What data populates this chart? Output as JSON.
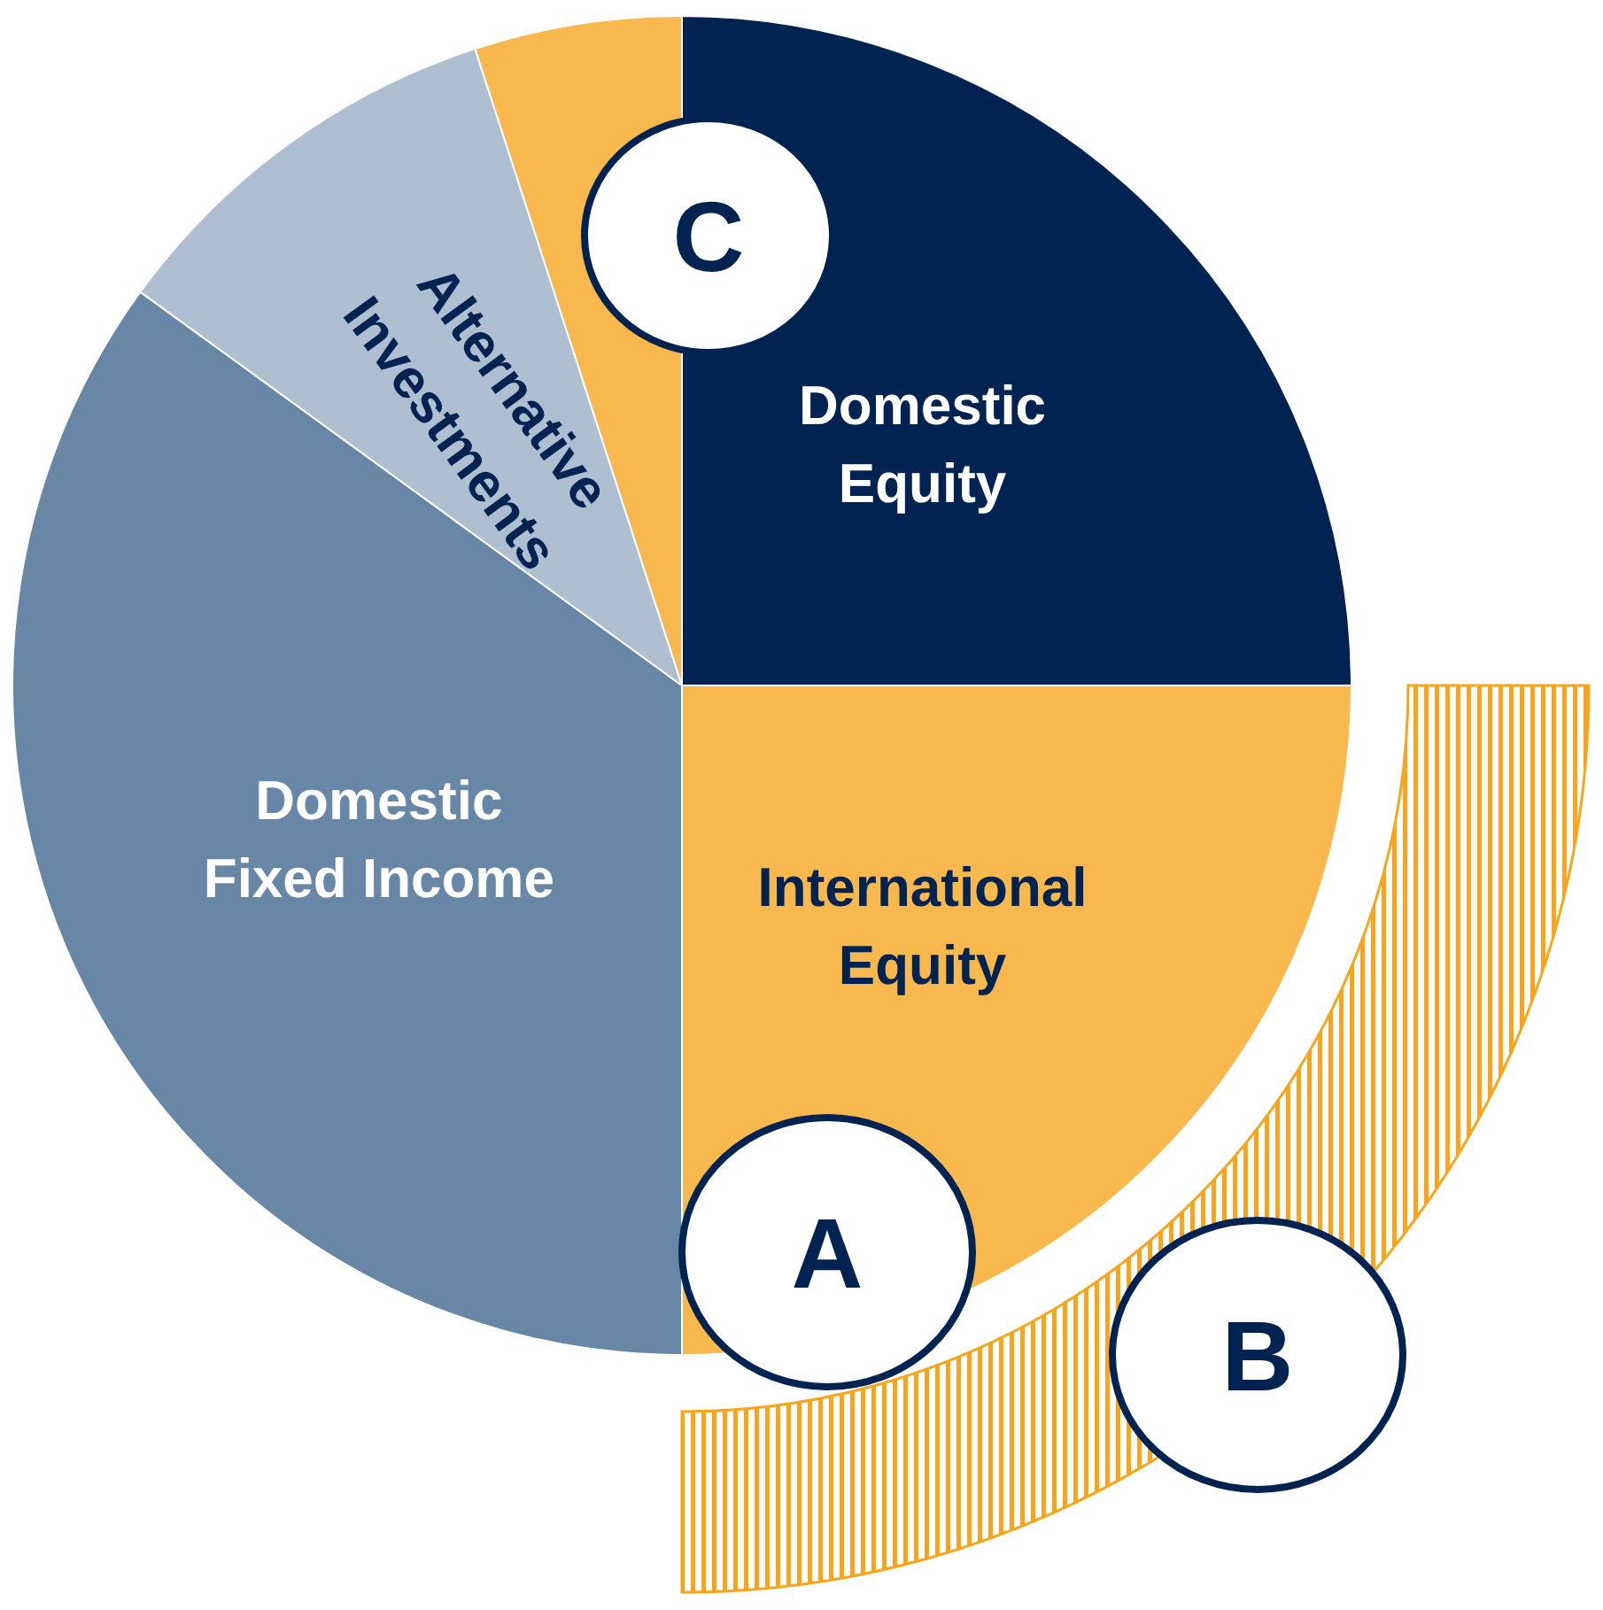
{
  "chart_data": {
    "type": "pie",
    "categories": [
      "Domestic Equity",
      "International Equity",
      "Domestic Fixed Income",
      "Alternative Investments",
      null
    ],
    "values": [
      25,
      25,
      35,
      10,
      5
    ],
    "colors": [
      "#002352",
      "#f8b84e",
      "#6886a5",
      "#aebfd1",
      "#f8b84e"
    ],
    "annotations": [
      "A",
      "B",
      "C"
    ]
  }
}
